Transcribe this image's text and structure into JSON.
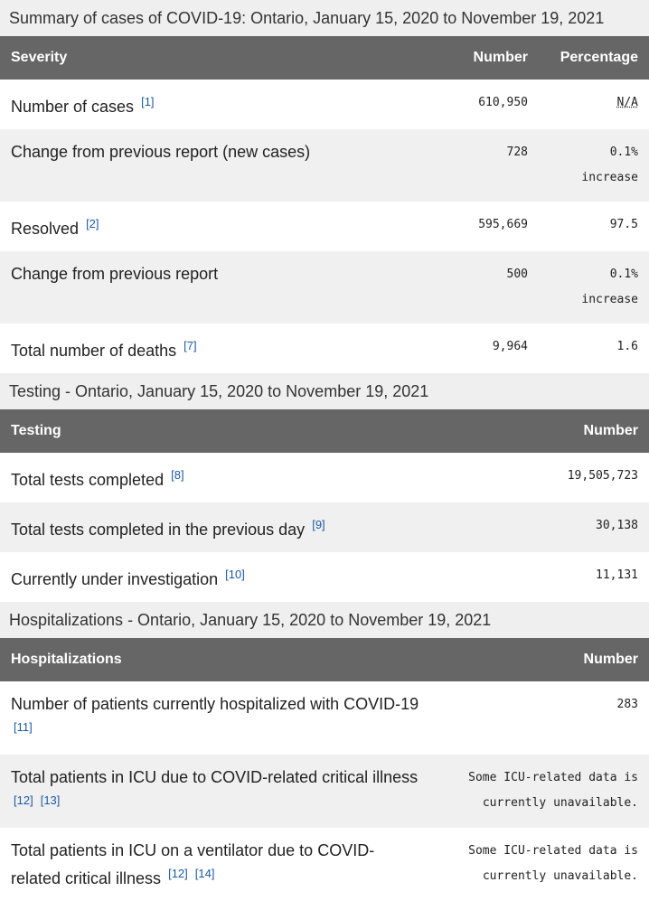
{
  "tables": [
    {
      "caption": "Summary of cases of COVID-19: Ontario, January 15, 2020 to November 19, 2021",
      "headers": [
        "Severity",
        "Number",
        "Percentage"
      ],
      "rows": [
        {
          "label": "Number of cases",
          "refs": [
            "[1]"
          ],
          "number": "610,950",
          "percentage": "N/A"
        },
        {
          "label": "Change from previous report (new cases)",
          "number": "728",
          "percentage": "0.1% increase"
        },
        {
          "label": "Resolved",
          "refs": [
            "[2]"
          ],
          "number": "595,669",
          "percentage": "97.5"
        },
        {
          "label": "Change from previous report",
          "number": "500",
          "percentage": "0.1% increase"
        },
        {
          "label": "Total number of deaths",
          "refs": [
            "[7]"
          ],
          "number": "9,964",
          "percentage": "1.6"
        }
      ]
    },
    {
      "caption": "Testing - Ontario, January 15, 2020 to November 19, 2021",
      "headers": [
        "Testing",
        "Number"
      ],
      "rows": [
        {
          "label": "Total tests completed",
          "refs": [
            "[8]"
          ],
          "number": "19,505,723"
        },
        {
          "label": "Total tests completed in the previous day",
          "refs": [
            "[9]"
          ],
          "number": "30,138"
        },
        {
          "label": "Currently under investigation",
          "refs": [
            "[10]"
          ],
          "number": "11,131"
        }
      ]
    },
    {
      "caption": "Hospitalizations - Ontario, January 15, 2020 to November 19, 2021",
      "headers": [
        "Hospitalizations",
        "Number"
      ],
      "rows": [
        {
          "label": "Number of patients currently hospitalized with COVID-19",
          "refs": [
            "[11]"
          ],
          "number": "283"
        },
        {
          "label": "Total patients in ICU due to COVID-related critical illness",
          "refs": [
            "[12]",
            "[13]"
          ],
          "number": "Some ICU-related data is currently unavailable."
        },
        {
          "label": "Total patients in ICU on a ventilator due to COVID-related critical illness",
          "refs": [
            "[12]",
            "[14]"
          ],
          "number": "Some ICU-related data is currently unavailable."
        }
      ]
    }
  ]
}
